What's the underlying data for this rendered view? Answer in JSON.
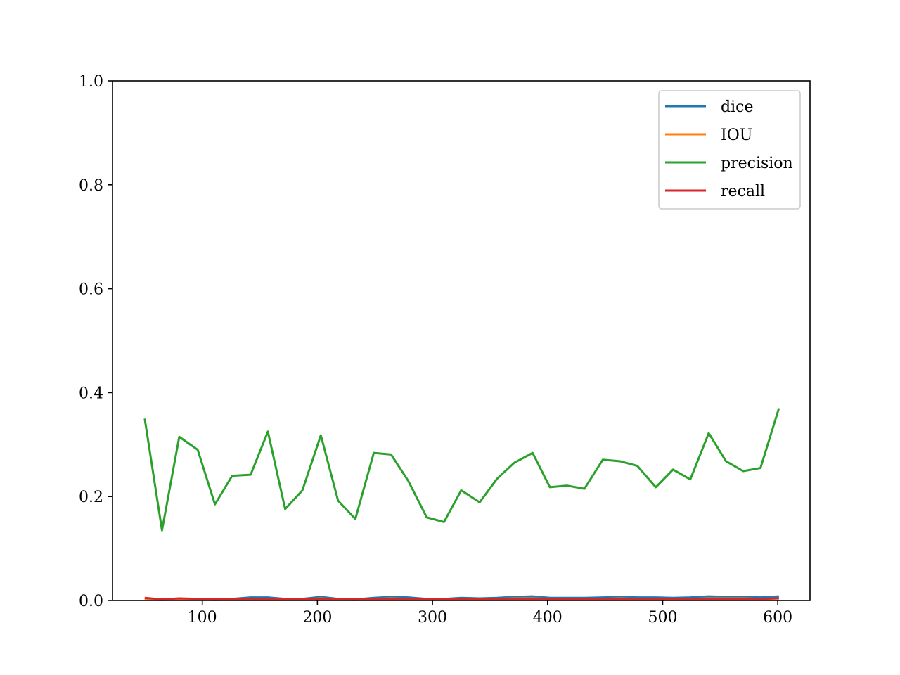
{
  "chart_data": {
    "type": "line",
    "x": [
      50,
      65,
      80,
      96,
      111,
      126,
      142,
      157,
      172,
      187,
      203,
      218,
      233,
      249,
      264,
      279,
      295,
      310,
      325,
      341,
      356,
      371,
      387,
      402,
      417,
      432,
      448,
      463,
      478,
      494,
      509,
      524,
      540,
      555,
      570,
      585,
      601
    ],
    "series": [
      {
        "name": "dice",
        "color": "#1f77b4",
        "values": [
          0.004,
          0.002,
          0.003,
          0.003,
          0.002,
          0.003,
          0.006,
          0.006,
          0.003,
          0.003,
          0.007,
          0.003,
          0.002,
          0.005,
          0.007,
          0.006,
          0.003,
          0.003,
          0.005,
          0.004,
          0.005,
          0.007,
          0.008,
          0.005,
          0.005,
          0.005,
          0.006,
          0.007,
          0.006,
          0.006,
          0.005,
          0.006,
          0.008,
          0.007,
          0.007,
          0.006,
          0.008
        ]
      },
      {
        "name": "IOU",
        "color": "#ff7f0e",
        "values": [
          0.002,
          0.001,
          0.002,
          0.002,
          0.001,
          0.002,
          0.003,
          0.003,
          0.002,
          0.002,
          0.004,
          0.002,
          0.001,
          0.003,
          0.004,
          0.003,
          0.002,
          0.002,
          0.003,
          0.002,
          0.003,
          0.004,
          0.004,
          0.003,
          0.003,
          0.003,
          0.003,
          0.004,
          0.003,
          0.003,
          0.003,
          0.003,
          0.004,
          0.004,
          0.004,
          0.003,
          0.004
        ]
      },
      {
        "name": "precision",
        "color": "#2ca02c",
        "values": [
          0.35,
          0.135,
          0.315,
          0.29,
          0.185,
          0.24,
          0.242,
          0.325,
          0.176,
          0.212,
          0.318,
          0.192,
          0.157,
          0.284,
          0.281,
          0.23,
          0.16,
          0.151,
          0.212,
          0.189,
          0.234,
          0.265,
          0.284,
          0.218,
          0.221,
          0.215,
          0.271,
          0.268,
          0.259,
          0.218,
          0.252,
          0.233,
          0.322,
          0.268,
          0.249,
          0.255,
          0.37
        ]
      },
      {
        "name": "recall",
        "color": "#d62728",
        "values": [
          0.005,
          0.002,
          0.004,
          0.003,
          0.002,
          0.003,
          0.003,
          0.003,
          0.002,
          0.003,
          0.003,
          0.003,
          0.002,
          0.003,
          0.003,
          0.003,
          0.002,
          0.002,
          0.003,
          0.002,
          0.002,
          0.003,
          0.003,
          0.002,
          0.003,
          0.003,
          0.003,
          0.003,
          0.003,
          0.003,
          0.003,
          0.003,
          0.003,
          0.003,
          0.003,
          0.003,
          0.004
        ]
      }
    ],
    "xlim": [
      22,
      628
    ],
    "ylim": [
      0,
      1.0
    ],
    "xticks": [
      100,
      200,
      300,
      400,
      500,
      600
    ],
    "yticks": [
      0.0,
      0.2,
      0.4,
      0.6,
      0.8,
      1.0
    ],
    "xtick_labels": [
      "100",
      "200",
      "300",
      "400",
      "500",
      "600"
    ],
    "ytick_labels": [
      "0.0",
      "0.2",
      "0.4",
      "0.6",
      "0.8",
      "1.0"
    ],
    "grid": false,
    "legend_position": "top-right"
  }
}
